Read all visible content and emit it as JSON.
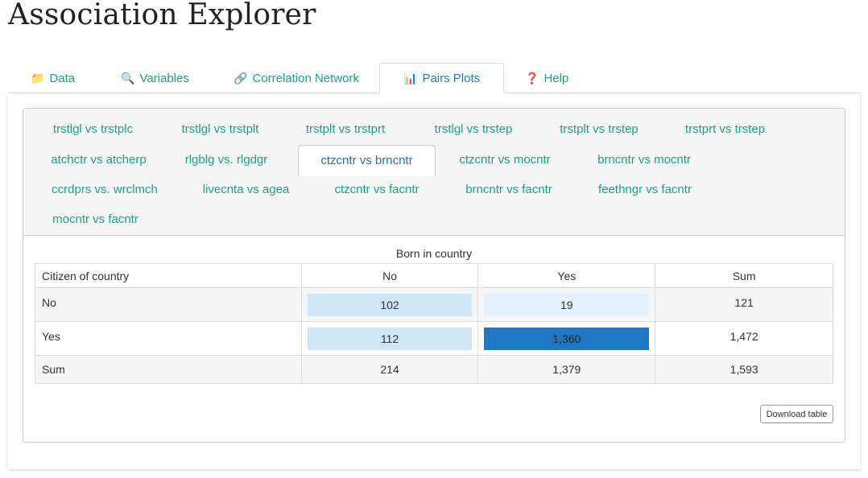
{
  "app_title": "Association Explorer",
  "top_tabs": [
    {
      "icon": "📁",
      "label": "Data"
    },
    {
      "icon": "🔍",
      "label": "Variables"
    },
    {
      "icon": "🔗",
      "label": "Correlation Network"
    },
    {
      "icon": "📊",
      "label": "Pairs Plots"
    },
    {
      "icon": "❓",
      "label": "Help"
    }
  ],
  "pair_tabs": [
    "trstlgl vs trstplc",
    "trstlgl vs trstplt",
    "trstplt vs trstprt",
    "trstlgl vs trstep",
    "trstplt vs trstep",
    "trstprt vs trstep",
    "atchctr vs atcherp",
    "rlgblg vs. rlgdgr",
    "ctzcntr vs brncntr",
    "ctzcntr vs mocntr",
    "brncntr vs mocntr",
    "ccrdprs vs. wrclmch",
    "livecnta vs agea",
    "ctzcntr vs facntr",
    "brncntr vs facntr",
    "feethngr vs facntr",
    "mocntr vs facntr"
  ],
  "active_pair_tab": "ctzcntr vs brncntr",
  "table": {
    "caption": "Born in country",
    "row_header": "Citizen of country",
    "col_headers": [
      "No",
      "Yes",
      "Sum"
    ],
    "rows": [
      {
        "label": "No",
        "cells": [
          "102",
          "19",
          "121"
        ]
      },
      {
        "label": "Yes",
        "cells": [
          "112",
          "1,360",
          "1,472"
        ]
      },
      {
        "label": "Sum",
        "cells": [
          "214",
          "1,379",
          "1,593"
        ]
      }
    ],
    "heat_colors": {
      "c102": "#cfe6f6",
      "c19": "#e2f1fb",
      "c112": "#cfe6f6",
      "c1360": "#1f77c4"
    }
  },
  "download_label": "Download table",
  "colors": {
    "link": "#1f9e89",
    "active_tab_text": "#2a7ab5"
  }
}
